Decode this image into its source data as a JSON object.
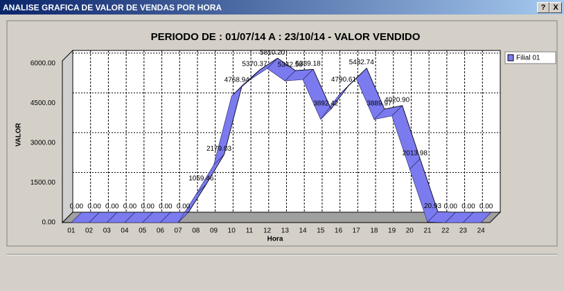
{
  "window": {
    "title": "ANALISE GRAFICA DE VALOR DE VENDAS POR HORA",
    "buttons": [
      "?",
      "X"
    ]
  },
  "chart_data": {
    "type": "ribbon",
    "title": "PERIODO DE : 01/07/14 A : 23/10/14 - VALOR VENDIDO",
    "x_label": "Hora",
    "y_label": "VALOR",
    "categories": [
      "01",
      "02",
      "03",
      "04",
      "05",
      "06",
      "07",
      "08",
      "09",
      "10",
      "11",
      "12",
      "13",
      "14",
      "15",
      "16",
      "17",
      "18",
      "19",
      "20",
      "21",
      "22",
      "23",
      "24"
    ],
    "series": [
      {
        "name": "Filial 01",
        "color": "#7b7bef",
        "values": [
          0,
          0,
          0,
          0,
          0,
          0,
          0,
          1059.46,
          2179.03,
          4768.94,
          5370.37,
          5810.2,
          5342.58,
          5389.18,
          3892.42,
          4790.61,
          5432.74,
          3889.97,
          4020.9,
          2013.98,
          20.93,
          0,
          0,
          0
        ],
        "value_labels": [
          "0.00",
          "0.00",
          "0.00",
          "0.00",
          "0.00",
          "0.00",
          "0.00",
          "1059.46",
          "2179.03",
          "4768.94",
          "5370.37",
          "5810.20",
          "5342.58",
          "5389.18",
          "3892.42",
          "4790.61",
          "5432.74",
          "3889.97",
          "4020.90",
          "2013.98",
          "20.93",
          "0.00",
          "0.00",
          "0.00"
        ]
      }
    ],
    "ylim": [
      0,
      6100
    ],
    "yticks": [
      {
        "value": 0,
        "label": "0.00"
      },
      {
        "value": 1500,
        "label": "1500.00"
      },
      {
        "value": 3000,
        "label": "3000.00"
      },
      {
        "value": 4500,
        "label": "4500.00"
      },
      {
        "value": 6000,
        "label": "6000.00"
      }
    ],
    "grid": true,
    "legend": "top-right"
  }
}
